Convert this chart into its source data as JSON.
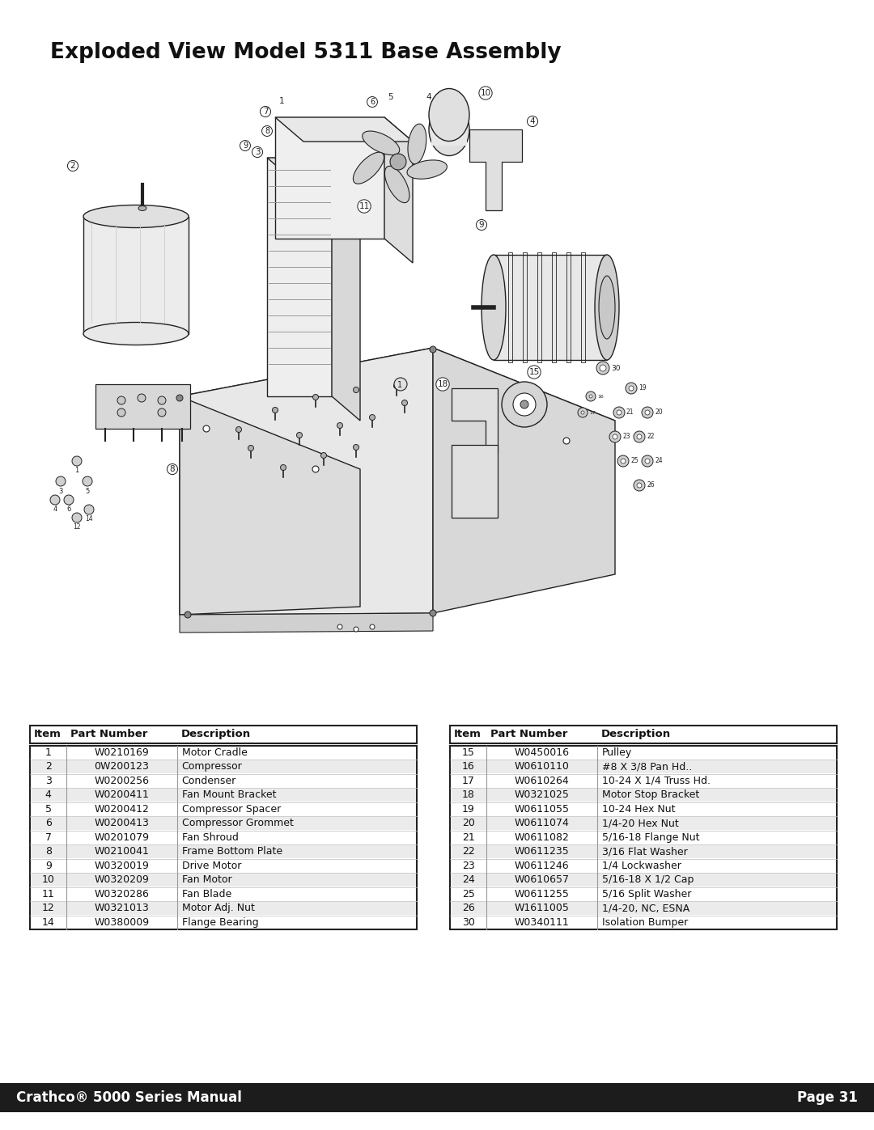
{
  "title": "Exploded View Model 5311 Base Assembly",
  "title_fontsize": 19,
  "footer_text_left": "Crathco® 5000 Series Manual",
  "footer_text_right": "Page 31",
  "footer_bg": "#1c1c1c",
  "footer_text_color": "#ffffff",
  "footer_fontsize": 12,
  "table_left": [
    {
      "item": "1",
      "part": "W0210169",
      "desc": "Motor Cradle"
    },
    {
      "item": "2",
      "part": "0W200123",
      "desc": "Compressor"
    },
    {
      "item": "3",
      "part": "W0200256",
      "desc": "Condenser"
    },
    {
      "item": "4",
      "part": "W0200411",
      "desc": "Fan Mount Bracket"
    },
    {
      "item": "5",
      "part": "W0200412",
      "desc": "Compressor Spacer"
    },
    {
      "item": "6",
      "part": "W0200413",
      "desc": "Compressor Grommet"
    },
    {
      "item": "7",
      "part": "W0201079",
      "desc": "Fan Shroud"
    },
    {
      "item": "8",
      "part": "W0210041",
      "desc": "Frame Bottom Plate"
    },
    {
      "item": "9",
      "part": "W0320019",
      "desc": "Drive Motor"
    },
    {
      "item": "10",
      "part": "W0320209",
      "desc": "Fan Motor"
    },
    {
      "item": "11",
      "part": "W0320286",
      "desc": "Fan Blade"
    },
    {
      "item": "12",
      "part": "W0321013",
      "desc": "Motor Adj. Nut"
    },
    {
      "item": "14",
      "part": "W0380009",
      "desc": "Flange Bearing"
    }
  ],
  "table_right": [
    {
      "item": "15",
      "part": "W0450016",
      "desc": "Pulley"
    },
    {
      "item": "16",
      "part": "W0610110",
      "desc": "#8 X 3/8 Pan Hd.."
    },
    {
      "item": "17",
      "part": "W0610264",
      "desc": "10-24 X 1/4 Truss Hd."
    },
    {
      "item": "18",
      "part": "W0321025",
      "desc": "Motor Stop Bracket"
    },
    {
      "item": "19",
      "part": "W0611055",
      "desc": "10-24 Hex Nut"
    },
    {
      "item": "20",
      "part": "W0611074",
      "desc": "1/4-20 Hex Nut"
    },
    {
      "item": "21",
      "part": "W0611082",
      "desc": "5/16-18 Flange Nut"
    },
    {
      "item": "22",
      "part": "W0611235",
      "desc": "3/16 Flat Washer"
    },
    {
      "item": "23",
      "part": "W0611246",
      "desc": "1/4 Lockwasher"
    },
    {
      "item": "24",
      "part": "W0610657",
      "desc": "5/16-18 X 1/2 Cap"
    },
    {
      "item": "25",
      "part": "W0611255",
      "desc": "5/16 Split Washer"
    },
    {
      "item": "26",
      "part": "W1611005",
      "desc": "1/4-20, NC, ESNA"
    },
    {
      "item": "30",
      "part": "W0340111",
      "desc": "Isolation Bumper"
    }
  ],
  "bg_color": "#ffffff",
  "table_border_color": "#222222",
  "table_font_size": 9,
  "table_header_font_size": 9.5,
  "diag_line_color": "#222222",
  "diag_fill_light": "#f5f5f5",
  "diag_fill_mid": "#e0e0e0",
  "diag_fill_dark": "#c8c8c8"
}
